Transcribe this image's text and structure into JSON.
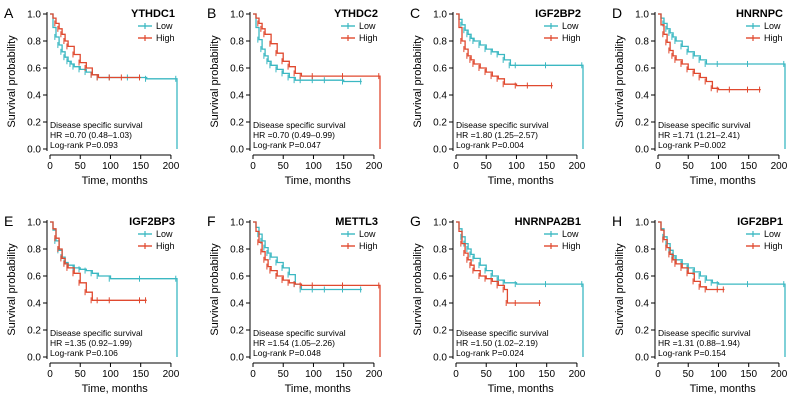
{
  "colors": {
    "low": "#3bb8c2",
    "high": "#e0492f",
    "axis": "#000000"
  },
  "chart_data": [
    {
      "type": "line",
      "letter": "A",
      "title": "YTHDC1",
      "xlabel": "Time, months",
      "ylabel": "Survival probability",
      "xlim": [
        0,
        215
      ],
      "ylim": [
        0,
        1
      ],
      "xticks": [
        "0",
        "50",
        "100",
        "150",
        "200"
      ],
      "yticks": [
        "0.0",
        "0.2",
        "0.4",
        "0.6",
        "0.8",
        "1.0"
      ],
      "legend": [
        "Low",
        "High"
      ],
      "stats": [
        "Disease specific survival",
        "HR =0.70 (0.48–1.03)",
        "Log-rank P=0.093"
      ],
      "series": [
        {
          "name": "Low",
          "x": [
            0,
            5,
            10,
            15,
            20,
            25,
            30,
            35,
            40,
            50,
            60,
            70,
            80,
            100,
            130,
            160,
            210,
            210
          ],
          "y": [
            1.0,
            0.9,
            0.83,
            0.77,
            0.72,
            0.68,
            0.65,
            0.63,
            0.61,
            0.59,
            0.57,
            0.55,
            0.53,
            0.53,
            0.53,
            0.52,
            0.52,
            0.0
          ]
        },
        {
          "name": "High",
          "x": [
            0,
            5,
            10,
            15,
            20,
            25,
            30,
            40,
            50,
            60,
            70,
            80,
            100,
            120,
            150
          ],
          "y": [
            1.0,
            0.97,
            0.93,
            0.89,
            0.85,
            0.8,
            0.76,
            0.7,
            0.64,
            0.6,
            0.55,
            0.53,
            0.53,
            0.53,
            0.53
          ]
        }
      ]
    },
    {
      "type": "line",
      "letter": "B",
      "title": "YTHDC2",
      "xlabel": "Time, months",
      "ylabel": "Survival probability",
      "xlim": [
        0,
        215
      ],
      "ylim": [
        0,
        1
      ],
      "xticks": [
        "0",
        "50",
        "100",
        "150",
        "200"
      ],
      "yticks": [
        "0.0",
        "0.2",
        "0.4",
        "0.6",
        "0.8",
        "1.0"
      ],
      "legend": [
        "Low",
        "High"
      ],
      "stats": [
        "Disease specific survival",
        "HR =0.70 (0.49–0.99)",
        "Log-rank P=0.047"
      ],
      "series": [
        {
          "name": "Low",
          "x": [
            0,
            5,
            10,
            15,
            20,
            25,
            30,
            40,
            50,
            60,
            70,
            80,
            100,
            120,
            150,
            180
          ],
          "y": [
            1.0,
            0.9,
            0.81,
            0.74,
            0.69,
            0.65,
            0.62,
            0.59,
            0.56,
            0.53,
            0.51,
            0.51,
            0.51,
            0.51,
            0.5,
            0.5
          ]
        },
        {
          "name": "High",
          "x": [
            0,
            5,
            10,
            15,
            20,
            30,
            40,
            50,
            60,
            70,
            80,
            100,
            150,
            210,
            210
          ],
          "y": [
            1.0,
            0.97,
            0.93,
            0.89,
            0.85,
            0.78,
            0.71,
            0.65,
            0.61,
            0.56,
            0.54,
            0.54,
            0.54,
            0.54,
            0.0
          ]
        }
      ]
    },
    {
      "type": "line",
      "letter": "C",
      "title": "IGF2BP2",
      "xlabel": "Time, months",
      "ylabel": "Survival probability",
      "xlim": [
        0,
        215
      ],
      "ylim": [
        0,
        1
      ],
      "xticks": [
        "0",
        "50",
        "100",
        "150",
        "200"
      ],
      "yticks": [
        "0.0",
        "0.2",
        "0.4",
        "0.6",
        "0.8",
        "1.0"
      ],
      "legend": [
        "Low",
        "High"
      ],
      "stats": [
        "Disease specific survival",
        "HR =1.80 (1.25–2.57)",
        "Log-rank P=0.004"
      ],
      "series": [
        {
          "name": "Low",
          "x": [
            0,
            5,
            10,
            15,
            20,
            25,
            30,
            40,
            50,
            60,
            70,
            80,
            90,
            100,
            150,
            210,
            210
          ],
          "y": [
            1.0,
            0.96,
            0.92,
            0.88,
            0.85,
            0.82,
            0.8,
            0.77,
            0.74,
            0.72,
            0.7,
            0.66,
            0.62,
            0.62,
            0.62,
            0.62,
            0.0
          ]
        },
        {
          "name": "High",
          "x": [
            0,
            5,
            10,
            15,
            20,
            25,
            30,
            40,
            50,
            60,
            70,
            80,
            100,
            120,
            160
          ],
          "y": [
            1.0,
            0.9,
            0.8,
            0.74,
            0.69,
            0.66,
            0.63,
            0.6,
            0.57,
            0.54,
            0.52,
            0.48,
            0.47,
            0.47,
            0.47
          ]
        }
      ]
    },
    {
      "type": "line",
      "letter": "D",
      "title": "HNRNPC",
      "xlabel": "Time, months",
      "ylabel": "Survival probability",
      "xlim": [
        0,
        215
      ],
      "ylim": [
        0,
        1
      ],
      "xticks": [
        "0",
        "50",
        "100",
        "150",
        "200"
      ],
      "yticks": [
        "0.0",
        "0.2",
        "0.4",
        "0.6",
        "0.8",
        "1.0"
      ],
      "legend": [
        "Low",
        "High"
      ],
      "stats": [
        "Disease specific survival",
        "HR =1.71 (1.21–2.41)",
        "Log-rank P=0.002"
      ],
      "series": [
        {
          "name": "Low",
          "x": [
            0,
            5,
            10,
            15,
            20,
            25,
            30,
            40,
            50,
            60,
            70,
            80,
            100,
            150,
            210,
            210
          ],
          "y": [
            1.0,
            0.97,
            0.93,
            0.89,
            0.86,
            0.83,
            0.8,
            0.76,
            0.72,
            0.69,
            0.66,
            0.63,
            0.63,
            0.63,
            0.63,
            0.0
          ]
        },
        {
          "name": "High",
          "x": [
            0,
            5,
            10,
            15,
            20,
            25,
            30,
            40,
            50,
            60,
            70,
            80,
            90,
            100,
            120,
            150,
            170
          ],
          "y": [
            1.0,
            0.92,
            0.85,
            0.79,
            0.73,
            0.69,
            0.66,
            0.63,
            0.59,
            0.56,
            0.53,
            0.5,
            0.45,
            0.44,
            0.44,
            0.44,
            0.44
          ]
        }
      ]
    },
    {
      "type": "line",
      "letter": "E",
      "title": "IGF2BP3",
      "xlabel": "Time, months",
      "ylabel": "Survival probability",
      "xlim": [
        0,
        215
      ],
      "ylim": [
        0,
        1
      ],
      "xticks": [
        "0",
        "50",
        "100",
        "150",
        "200"
      ],
      "yticks": [
        "0.0",
        "0.2",
        "0.4",
        "0.6",
        "0.8",
        "1.0"
      ],
      "legend": [
        "Low",
        "High"
      ],
      "stats": [
        "Disease specific survival",
        "HR =1.35 (0.92–1.99)",
        "Log-rank P=0.106"
      ],
      "series": [
        {
          "name": "Low",
          "x": [
            0,
            5,
            10,
            15,
            20,
            25,
            30,
            40,
            50,
            60,
            70,
            80,
            100,
            150,
            210,
            210
          ],
          "y": [
            1.0,
            0.94,
            0.86,
            0.79,
            0.74,
            0.7,
            0.68,
            0.66,
            0.65,
            0.64,
            0.62,
            0.6,
            0.58,
            0.58,
            0.58,
            0.0
          ]
        },
        {
          "name": "High",
          "x": [
            0,
            5,
            10,
            15,
            20,
            25,
            30,
            40,
            50,
            60,
            70,
            80,
            100,
            150,
            160
          ],
          "y": [
            1.0,
            0.95,
            0.88,
            0.8,
            0.73,
            0.69,
            0.66,
            0.62,
            0.55,
            0.48,
            0.42,
            0.42,
            0.42,
            0.42,
            0.42
          ]
        }
      ]
    },
    {
      "type": "line",
      "letter": "F",
      "title": "METTL3",
      "xlabel": "Time, months",
      "ylabel": "Survival probability",
      "xlim": [
        0,
        215
      ],
      "ylim": [
        0,
        1
      ],
      "xticks": [
        "0",
        "50",
        "100",
        "150",
        "200"
      ],
      "yticks": [
        "0.0",
        "0.2",
        "0.4",
        "0.6",
        "0.8",
        "1.0"
      ],
      "legend": [
        "Low",
        "High"
      ],
      "stats": [
        "Disease specific survival",
        "HR =1.54 (1.05–2.26)",
        "Log-rank P=0.048"
      ],
      "series": [
        {
          "name": "Low",
          "x": [
            0,
            5,
            10,
            15,
            20,
            25,
            30,
            40,
            50,
            60,
            70,
            80,
            100,
            120,
            150,
            180
          ],
          "y": [
            1.0,
            0.96,
            0.91,
            0.86,
            0.81,
            0.77,
            0.74,
            0.7,
            0.66,
            0.61,
            0.54,
            0.5,
            0.5,
            0.5,
            0.5,
            0.5
          ]
        },
        {
          "name": "High",
          "x": [
            0,
            5,
            10,
            15,
            20,
            25,
            30,
            40,
            50,
            60,
            70,
            80,
            100,
            150,
            210,
            210
          ],
          "y": [
            1.0,
            0.93,
            0.85,
            0.78,
            0.72,
            0.67,
            0.64,
            0.6,
            0.57,
            0.55,
            0.54,
            0.53,
            0.53,
            0.53,
            0.53,
            0.0
          ]
        }
      ]
    },
    {
      "type": "line",
      "letter": "G",
      "title": "HNRNPA2B1",
      "xlabel": "Time, months",
      "ylabel": "Survival probability",
      "xlim": [
        0,
        215
      ],
      "ylim": [
        0,
        1
      ],
      "xticks": [
        "0",
        "50",
        "100",
        "150",
        "200"
      ],
      "yticks": [
        "0.0",
        "0.2",
        "0.4",
        "0.6",
        "0.8",
        "1.0"
      ],
      "legend": [
        "Low",
        "High"
      ],
      "stats": [
        "Disease specific survival",
        "HR =1.50 (1.02–2.19)",
        "Log-rank P=0.024"
      ],
      "series": [
        {
          "name": "Low",
          "x": [
            0,
            5,
            10,
            15,
            20,
            25,
            30,
            40,
            50,
            60,
            70,
            80,
            100,
            150,
            210,
            210
          ],
          "y": [
            1.0,
            0.95,
            0.89,
            0.84,
            0.8,
            0.76,
            0.73,
            0.68,
            0.64,
            0.6,
            0.57,
            0.55,
            0.54,
            0.54,
            0.54,
            0.0
          ]
        },
        {
          "name": "High",
          "x": [
            0,
            5,
            10,
            15,
            20,
            25,
            30,
            40,
            50,
            60,
            70,
            80,
            85,
            100,
            140
          ],
          "y": [
            1.0,
            0.93,
            0.84,
            0.77,
            0.72,
            0.68,
            0.64,
            0.6,
            0.58,
            0.56,
            0.53,
            0.5,
            0.4,
            0.4,
            0.4
          ]
        }
      ]
    },
    {
      "type": "line",
      "letter": "H",
      "title": "IGF2BP1",
      "xlabel": "Time, months",
      "ylabel": "Survival probability",
      "xlim": [
        0,
        215
      ],
      "ylim": [
        0,
        1
      ],
      "xticks": [
        "0",
        "50",
        "100",
        "150",
        "200"
      ],
      "yticks": [
        "0.0",
        "0.2",
        "0.4",
        "0.6",
        "0.8",
        "1.0"
      ],
      "legend": [
        "Low",
        "High"
      ],
      "stats": [
        "Disease specific survival",
        "HR =1.31 (0.88–1.94)",
        "Log-rank P=0.154"
      ],
      "series": [
        {
          "name": "Low",
          "x": [
            0,
            5,
            10,
            15,
            20,
            25,
            30,
            40,
            50,
            60,
            70,
            80,
            90,
            100,
            150,
            210,
            210
          ],
          "y": [
            1.0,
            0.95,
            0.89,
            0.84,
            0.79,
            0.75,
            0.72,
            0.69,
            0.66,
            0.63,
            0.6,
            0.57,
            0.55,
            0.54,
            0.54,
            0.54,
            0.0
          ]
        },
        {
          "name": "High",
          "x": [
            0,
            5,
            10,
            15,
            20,
            25,
            30,
            40,
            50,
            60,
            70,
            80,
            100,
            110
          ],
          "y": [
            1.0,
            0.94,
            0.87,
            0.81,
            0.76,
            0.72,
            0.69,
            0.66,
            0.62,
            0.56,
            0.52,
            0.5,
            0.5,
            0.5
          ]
        }
      ]
    }
  ]
}
